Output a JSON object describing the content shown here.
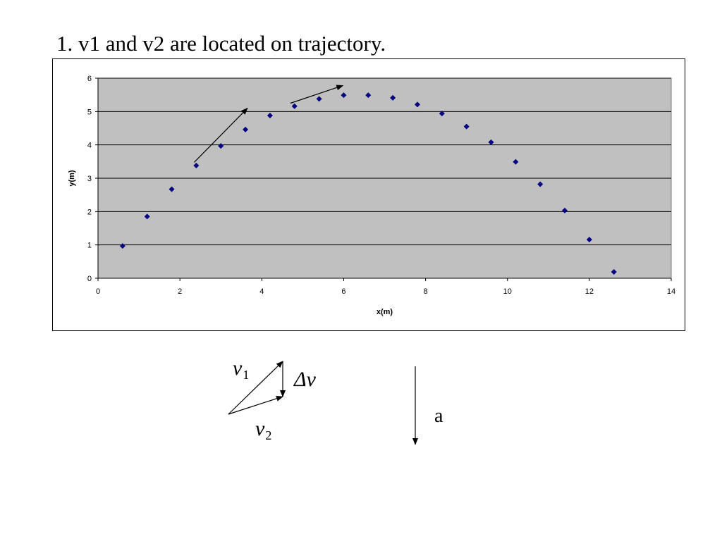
{
  "slide": {
    "title": "1. v1 and v2 are located on trajectory."
  },
  "chart_data": {
    "type": "scatter",
    "xlabel": "x(m)",
    "ylabel": "y(m)",
    "xlim": [
      0,
      14
    ],
    "ylim": [
      0,
      6
    ],
    "xticks": [
      0,
      2,
      4,
      6,
      8,
      10,
      12,
      14
    ],
    "yticks": [
      0,
      1,
      2,
      3,
      4,
      5,
      6
    ],
    "grid": "horizontal",
    "plot_background": "#c0c0c0",
    "marker_color": "#000080",
    "marker": "diamond",
    "series": [
      {
        "x": [
          0.6,
          1.2,
          1.8,
          2.4,
          3.0,
          3.6,
          4.2,
          4.8,
          5.4,
          6.0,
          6.6,
          7.2,
          7.8,
          8.4,
          9.0,
          9.6,
          10.2,
          10.8,
          11.4,
          12.0,
          12.6
        ],
        "y": [
          0.97,
          1.85,
          2.67,
          3.38,
          3.97,
          4.46,
          4.88,
          5.16,
          5.38,
          5.49,
          5.49,
          5.41,
          5.21,
          4.94,
          4.55,
          4.08,
          3.49,
          2.82,
          2.03,
          1.16,
          0.19
        ]
      }
    ],
    "annotations": [
      {
        "type": "arrow",
        "name": "v1",
        "from": [
          2.35,
          3.48
        ],
        "to": [
          3.65,
          5.1
        ]
      },
      {
        "type": "arrow",
        "name": "v2",
        "from": [
          4.7,
          5.25
        ],
        "to": [
          5.98,
          5.78
        ]
      }
    ]
  },
  "diagram": {
    "v_symbol": "v",
    "v1_subscript": "1",
    "v2_subscript": "2",
    "delta_v_label": "Δv",
    "accel_label": "a"
  }
}
